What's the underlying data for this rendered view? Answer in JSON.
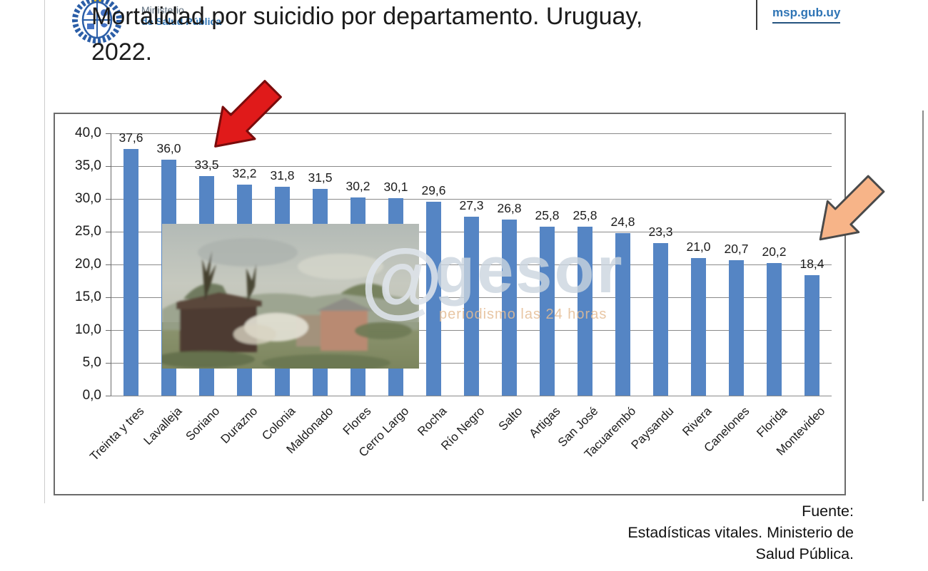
{
  "header": {
    "ministry_line1": "Ministerio",
    "ministry_line2": "de Salud Pública",
    "title_line1": "Mortalidad por suicidio por departamento. Uruguay,",
    "title_line2": "2022.",
    "site_link": "msp.gub.uy"
  },
  "watermark": {
    "at_symbol": "@",
    "name": "gesor",
    "tagline": "periodismo las 24 horas"
  },
  "source": {
    "line1": "Fuente:",
    "line2": "Estadísticas vitales. Ministerio de",
    "line3": "Salud Pública."
  },
  "colors": {
    "bar": "#5585C4",
    "gridline": "#8a8a8a",
    "red_arrow": "#E01A1A",
    "red_arrow_outline": "#7A0C0C",
    "orange_arrow": "#F7B488",
    "orange_arrow_outline": "#4A4A4A",
    "link_blue": "#2E74B5"
  },
  "chart_data": {
    "type": "bar",
    "title": "Mortalidad por suicidio por departamento. Uruguay, 2022.",
    "categories": [
      "Treinta y tres",
      "Lavalleja",
      "Soriano",
      "Durazno",
      "Colonia",
      "Maldonado",
      "Flores",
      "Cerro Largo",
      "Rocha",
      "Río Negro",
      "Salto",
      "Artigas",
      "San José",
      "Tacuarembó",
      "Paysandu",
      "Rivera",
      "Canelones",
      "Florida",
      "Montevideo"
    ],
    "values": [
      37.6,
      36.0,
      33.5,
      32.2,
      31.8,
      31.5,
      30.2,
      30.1,
      29.6,
      27.3,
      26.8,
      25.8,
      25.8,
      24.8,
      23.3,
      21.0,
      20.7,
      20.2,
      18.4
    ],
    "value_labels": [
      "37,6",
      "36,0",
      "33,5",
      "32,2",
      "31,8",
      "31,5",
      "30,2",
      "30,1",
      "29,6",
      "27,3",
      "26,8",
      "25,8",
      "25,8",
      "24,8",
      "23,3",
      "21,0",
      "20,7",
      "20,2",
      "18,4"
    ],
    "ylim": [
      0,
      40
    ],
    "ytick_step": 5,
    "ytick_labels": [
      "0,0",
      "5,0",
      "10,0",
      "15,0",
      "20,0",
      "25,0",
      "30,0",
      "35,0",
      "40,0"
    ],
    "xlabel": "",
    "ylabel": "",
    "grid": true,
    "legend": "none",
    "bar_color": "#5585C4",
    "annotations": [
      {
        "type": "arrow",
        "color": "red",
        "points_to": "Soriano"
      },
      {
        "type": "arrow",
        "color": "orange",
        "points_to": "Montevideo"
      }
    ]
  }
}
